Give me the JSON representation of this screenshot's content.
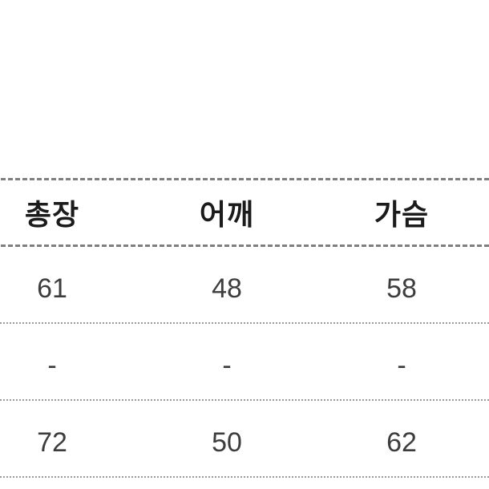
{
  "table": {
    "description": "size-chart",
    "headers": [
      "총장",
      "어깨",
      "가슴"
    ],
    "rows": [
      {
        "cells": [
          "61",
          "48",
          "58"
        ]
      },
      {
        "cells": [
          "-",
          "-",
          "-"
        ]
      },
      {
        "cells": [
          "72",
          "50",
          "62"
        ]
      }
    ]
  },
  "colors": {
    "background": "#ffffff",
    "header_text": "#1b1b1b",
    "cell_text": "#3d3d3d",
    "dashed_line": "#7f7f7f",
    "dotted_line": "#9a9a9a"
  }
}
